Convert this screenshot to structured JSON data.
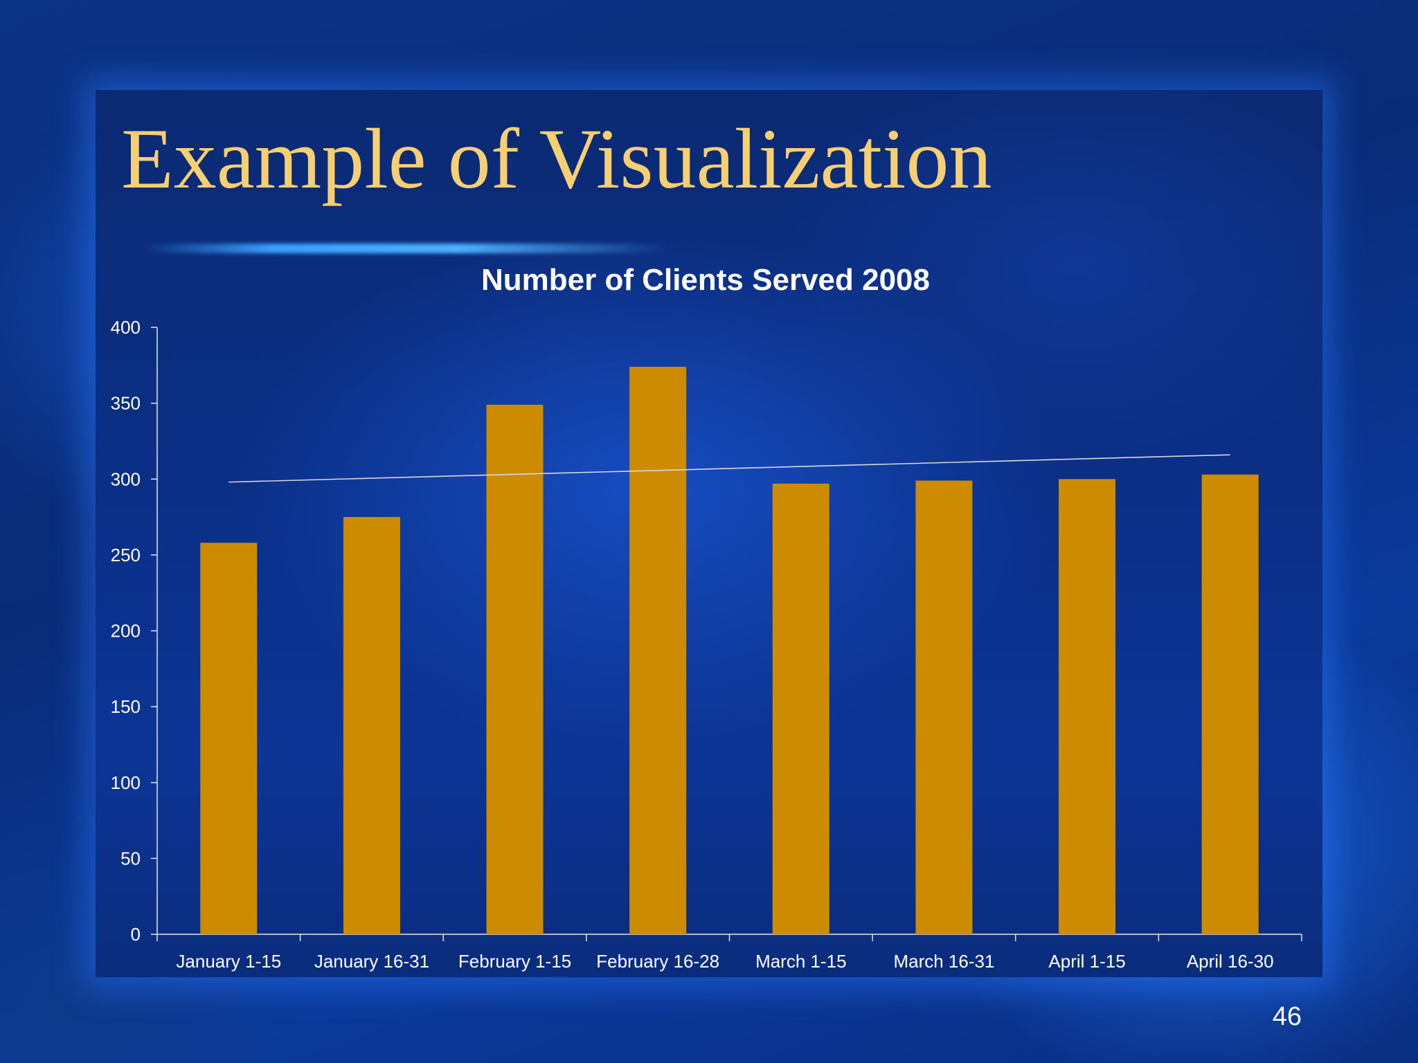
{
  "slide": {
    "title": "Example of Visualization",
    "number": "46"
  },
  "colors": {
    "bar": "#cc8b00",
    "trendline": "#d8d8d8",
    "axis": "#e6e6e6",
    "text": "#ffffff",
    "title": "#f6cf72"
  },
  "chart_data": {
    "type": "bar",
    "title": "Number of Clients Served 2008",
    "xlabel": "",
    "ylabel": "",
    "categories": [
      "January 1-15",
      "January 16-31",
      "February 1-15",
      "February 16-28",
      "March 1-15",
      "March 16-31",
      "April 1-15",
      "April 16-30"
    ],
    "values": [
      258,
      275,
      349,
      374,
      297,
      299,
      300,
      303
    ],
    "ylim": [
      0,
      400
    ],
    "yticks": [
      0,
      50,
      100,
      150,
      200,
      250,
      300,
      350,
      400
    ],
    "trendline": {
      "type": "linear",
      "start": 298,
      "end": 316
    },
    "grid": false,
    "legend": "none"
  }
}
